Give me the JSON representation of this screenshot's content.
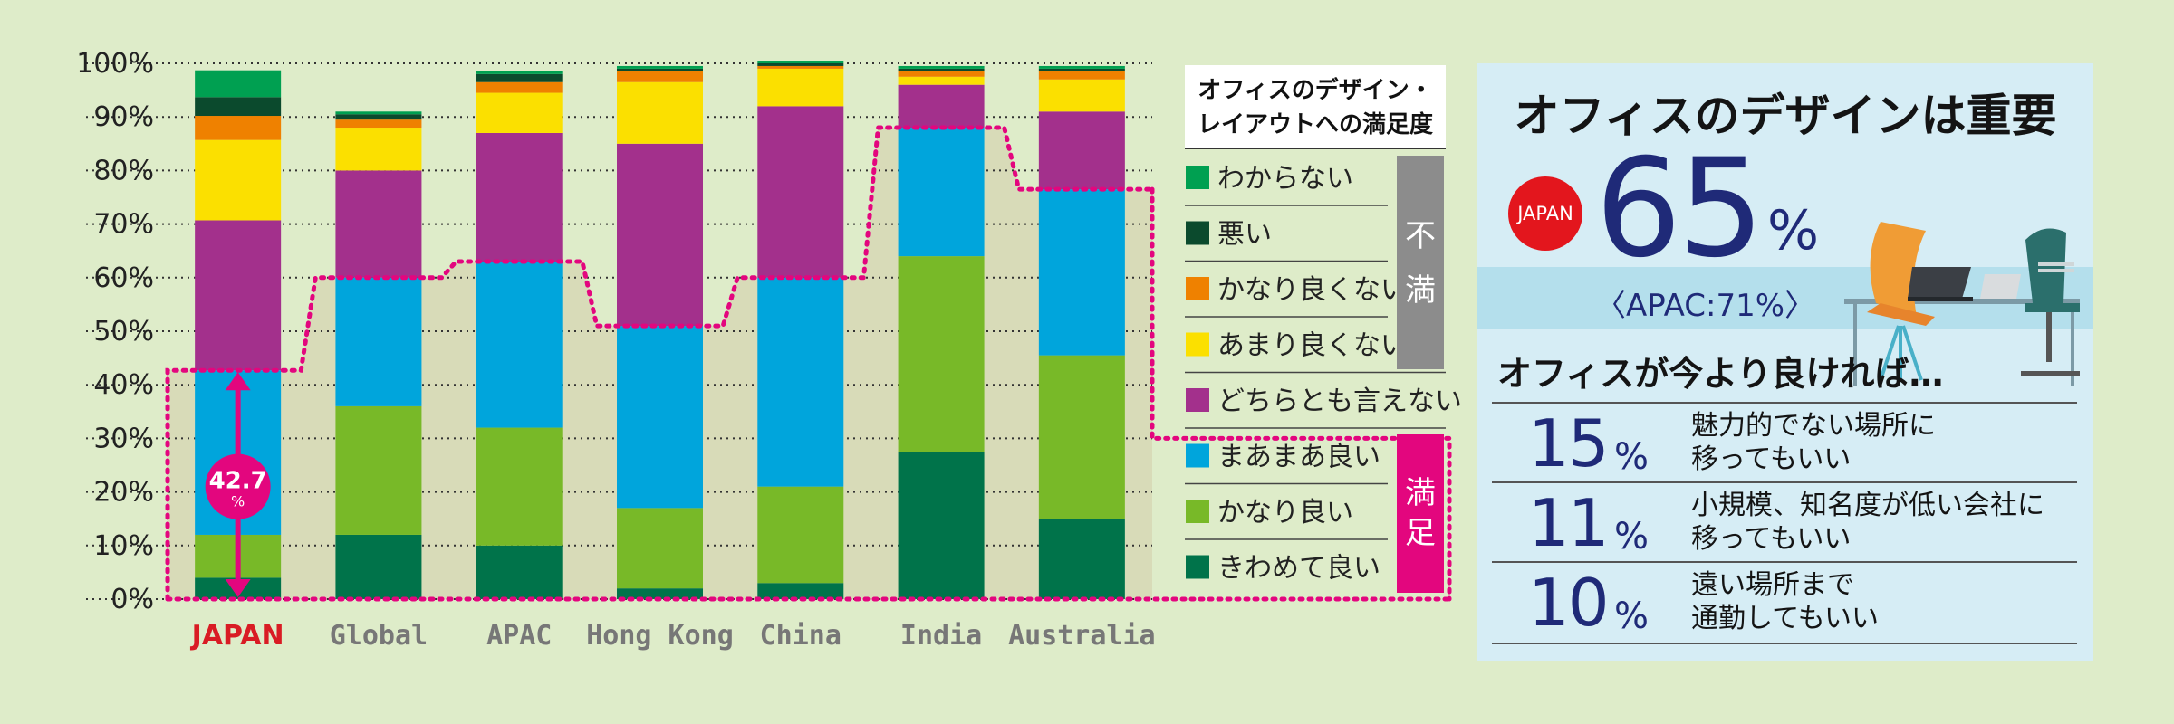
{
  "chart_data": {
    "type": "bar",
    "stacked": true,
    "horizontal": false,
    "categories": [
      "JAPAN",
      "Global",
      "APAC",
      "Hong Kong",
      "China",
      "India",
      "Australia"
    ],
    "highlight_category": "JAPAN",
    "ylim": [
      0,
      100
    ],
    "yticks": [
      "0%",
      "10%",
      "20%",
      "30%",
      "40%",
      "50%",
      "60%",
      "70%",
      "80%",
      "90%",
      "100%"
    ],
    "grid": true,
    "series": [
      {
        "name": "きわめて良い",
        "color": "#00734a",
        "values": [
          4,
          12,
          10,
          2,
          3,
          27.5,
          15
        ]
      },
      {
        "name": "かなり良い",
        "color": "#78b928",
        "values": [
          8,
          24,
          22,
          15,
          18,
          36.5,
          30.5
        ]
      },
      {
        "name": "まあまあ良い",
        "color": "#00a5dc",
        "values": [
          30.7,
          24,
          31,
          34,
          39,
          24,
          31
        ]
      },
      {
        "name": "どちらとも言えない",
        "color": "#a3308c",
        "values": [
          28,
          20,
          24,
          34,
          32,
          8,
          14.5
        ]
      },
      {
        "name": "あまり良くない",
        "color": "#fbe000",
        "values": [
          15,
          8,
          7.5,
          11.5,
          7,
          1.5,
          6
        ]
      },
      {
        "name": "かなり良くない",
        "color": "#ef8100",
        "values": [
          4.5,
          1.5,
          2,
          2,
          0.5,
          1,
          1.5
        ]
      },
      {
        "name": "悪い",
        "color": "#0b4a2d",
        "values": [
          3.5,
          1,
          1.5,
          0.5,
          0.5,
          0.5,
          0.5
        ]
      },
      {
        "name": "わからない",
        "color": "#00a051",
        "values": [
          5,
          0.5,
          0.5,
          0.5,
          0.5,
          0.5,
          0.5
        ]
      }
    ],
    "satisfied_totals": [
      42.7,
      60,
      63,
      51,
      60,
      88,
      76.5
    ],
    "annotation": {
      "value": "42.7",
      "unit": "%"
    },
    "legend": {
      "title_line1": "オフィスのデザイン・",
      "title_line2": "レイアウトへの満足度",
      "placement": "right",
      "group_dissatisfied": [
        "不",
        "満"
      ],
      "group_satisfied": [
        "満",
        "足"
      ],
      "group_dissatisfied_color": "#8c8c8c",
      "group_satisfied_color": "#e3067e"
    },
    "highlight_color": "#e3067e"
  },
  "panel": {
    "title": "オフィスのデザインは重要",
    "badge": "JAPAN",
    "value": "65",
    "pct": "%",
    "apac": "〈APAC:71%〉",
    "subtitle": "オフィスが今より良ければ…",
    "stats": [
      {
        "num": "15",
        "pct": "%",
        "line1": "魅力的でない場所に",
        "line2": "移ってもいい"
      },
      {
        "num": "11",
        "pct": "%",
        "line1": "小規模、知名度が低い会社に",
        "line2": "移ってもいい"
      },
      {
        "num": "10",
        "pct": "%",
        "line1": "遠い場所まで",
        "line2": "通勤してもいい"
      }
    ]
  }
}
